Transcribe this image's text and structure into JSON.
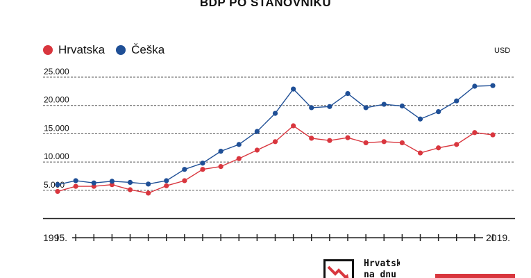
{
  "title": "BDP PO STANOVNIKU",
  "unit": "USD",
  "legend": [
    {
      "label": "Hrvatska",
      "color": "#d9363e"
    },
    {
      "label": "Češka",
      "color": "#1f4f96"
    }
  ],
  "logo": {
    "line1": "Hrvatska",
    "line2": "na dnu"
  },
  "chart_data": {
    "type": "line",
    "x": [
      1995,
      1996,
      1997,
      1998,
      1999,
      2000,
      2001,
      2002,
      2003,
      2004,
      2005,
      2006,
      2007,
      2008,
      2009,
      2010,
      2011,
      2012,
      2013,
      2014,
      2015,
      2016,
      2017,
      2018,
      2019
    ],
    "x_tick_labels": {
      "first": "1995.",
      "last": "2019."
    },
    "ylim": [
      0,
      25000
    ],
    "yticks": [
      5000,
      10000,
      15000,
      20000,
      25000
    ],
    "ytick_labels": [
      "5.000",
      "10.000",
      "15.000",
      "20.000",
      "25.000"
    ],
    "grid": "horizontal dashed",
    "legend_position": "top-left",
    "series": [
      {
        "name": "Hrvatska",
        "color": "#d9363e",
        "values": [
          4800,
          5700,
          5700,
          6000,
          5100,
          4500,
          5800,
          6700,
          8700,
          9200,
          10600,
          12100,
          13600,
          16400,
          14200,
          13800,
          14300,
          13400,
          13600,
          13400,
          11600,
          12500,
          13100,
          15200,
          14800
        ]
      },
      {
        "name": "Češka",
        "color": "#1f4f96",
        "values": [
          6000,
          6700,
          6300,
          6600,
          6400,
          6100,
          6700,
          8700,
          9800,
          11900,
          13100,
          15400,
          18600,
          22900,
          19600,
          19800,
          22100,
          19600,
          20200,
          19900,
          17600,
          18900,
          20800,
          23400,
          23500
        ]
      }
    ]
  }
}
